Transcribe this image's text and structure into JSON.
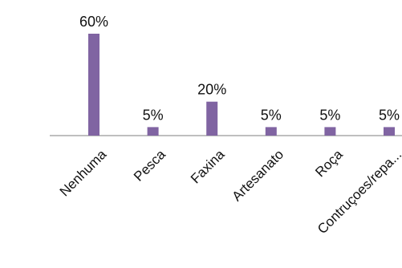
{
  "chart_data": {
    "type": "bar",
    "categories": [
      "Nenhuma",
      "Pesca",
      "Faxina",
      "Artesanato",
      "Roça",
      "Contruçoes/repa..."
    ],
    "values": [
      60,
      5,
      20,
      5,
      5,
      5
    ],
    "value_labels": [
      "60%",
      "5%",
      "20%",
      "5%",
      "5%",
      "5%"
    ],
    "ylim": [
      0,
      60
    ],
    "grid": false,
    "legend": "none",
    "colors": {
      "bar": "#8064A2",
      "axis": "#7F7F7F",
      "text": "#111111"
    }
  }
}
